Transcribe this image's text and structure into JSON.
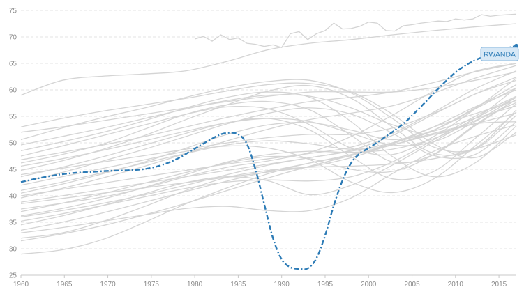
{
  "chart_data": {
    "type": "line",
    "title": "",
    "xlabel": "",
    "ylabel": "",
    "xlim": [
      1960,
      2017
    ],
    "ylim": [
      25,
      75
    ],
    "x_ticks": [
      1960,
      1965,
      1970,
      1975,
      1980,
      1985,
      1990,
      1995,
      2000,
      2005,
      2010,
      2015
    ],
    "y_ticks": [
      25,
      30,
      35,
      40,
      45,
      50,
      55,
      60,
      65,
      70,
      75
    ],
    "grid": true,
    "highlight": {
      "name": "RWANDA",
      "color": "#2c7bb6",
      "x": [
        1960,
        1962,
        1964,
        1966,
        1968,
        1970,
        1972,
        1974,
        1976,
        1978,
        1980,
        1982,
        1983,
        1984,
        1985,
        1986,
        1987,
        1988,
        1989,
        1990,
        1991,
        1992,
        1993,
        1994,
        1995,
        1996,
        1997,
        1998,
        1999,
        2000,
        2002,
        2004,
        2006,
        2008,
        2010,
        2012,
        2014,
        2016,
        2017
      ],
      "values": [
        42.6,
        43.3,
        43.9,
        44.3,
        44.5,
        44.7,
        44.8,
        45.0,
        45.7,
        47.0,
        48.9,
        50.8,
        51.6,
        51.9,
        51.6,
        49.8,
        44.9,
        38.4,
        32.0,
        28.0,
        26.5,
        26.2,
        26.3,
        28.2,
        32.5,
        38.2,
        42.9,
        46.2,
        48.0,
        49.0,
        51.2,
        53.6,
        56.8,
        60.2,
        63.3,
        65.4,
        66.7,
        67.9,
        68.3
      ]
    },
    "background_series": [
      {
        "values": [
          59,
          61.8,
          62.6,
          63,
          63.6,
          65.4,
          67.6,
          68.8,
          69.5,
          70.4,
          71.2,
          71.9,
          72.5
        ]
      },
      {
        "values": [
          29,
          29.8,
          31.8,
          35,
          38.5,
          41.5,
          44.2,
          46.2,
          47.6,
          50,
          53,
          55.5,
          58
        ]
      },
      {
        "values": [
          32,
          33,
          35.2,
          38,
          41,
          43.5,
          44.8,
          45.4,
          45.6,
          46,
          47,
          48.8,
          51.5
        ]
      },
      {
        "values": [
          37.5,
          38.6,
          39.8,
          41.5,
          43.6,
          45.4,
          46.6,
          48.2,
          51.2,
          55.2,
          59.8,
          63.5,
          65
        ]
      },
      {
        "values": [
          38.5,
          39.5,
          40.5,
          41.5,
          42.5,
          43.5,
          44.5,
          45.5,
          47.2,
          49.8,
          53,
          56.8,
          60
        ]
      },
      {
        "values": [
          36.2,
          37.6,
          39.4,
          41.6,
          44,
          46.4,
          47.8,
          48.4,
          48.2,
          48.8,
          50.8,
          54.2,
          57.6
        ]
      },
      {
        "values": [
          34.5,
          36.2,
          38.2,
          40.4,
          42.5,
          43.6,
          42.8,
          40.2,
          42,
          45.8,
          50.2,
          54.6,
          58.6
        ]
      },
      {
        "values": [
          40.5,
          42.2,
          44.2,
          46.4,
          49,
          51.6,
          53.4,
          53.8,
          52.4,
          50.6,
          52.4,
          56.4,
          60.4
        ]
      },
      {
        "values": [
          46.2,
          47.8,
          49.8,
          52.6,
          55.4,
          57.2,
          57.8,
          56.2,
          51.4,
          46.4,
          47.8,
          53.2,
          58.2
        ]
      },
      {
        "values": [
          48.5,
          50.2,
          52,
          54.2,
          56.6,
          58.6,
          59.6,
          58.6,
          54,
          47.4,
          43.6,
          46.2,
          53.2
        ]
      },
      {
        "values": [
          44.8,
          46.6,
          48.8,
          51.4,
          54.4,
          57.2,
          59.8,
          60.8,
          58.4,
          53,
          48,
          48.8,
          55.2
        ]
      },
      {
        "values": [
          50.6,
          52.8,
          54.8,
          56.6,
          58.6,
          60.4,
          61.6,
          61.8,
          59.4,
          54.6,
          49.2,
          49,
          56.2
        ]
      },
      {
        "values": [
          42.5,
          44.4,
          46.6,
          48.8,
          51.2,
          53.6,
          55.6,
          56.6,
          55.4,
          51.8,
          47.6,
          47.8,
          54
        ]
      },
      {
        "values": [
          53,
          54.6,
          56,
          57.2,
          58.4,
          59.8,
          61,
          61.2,
          59.6,
          55.4,
          49.8,
          47.2,
          52
        ]
      },
      {
        "values": [
          31.5,
          32.8,
          34.4,
          36.4,
          38.6,
          41,
          43.4,
          45.6,
          47.6,
          49.6,
          51.8,
          53.6,
          54
        ]
      },
      {
        "values": [
          33.5,
          35,
          36.8,
          38.8,
          40.8,
          42.8,
          44.6,
          46.2,
          47.8,
          49.6,
          51.6,
          53.6,
          55.6
        ]
      },
      {
        "values": [
          36,
          37.2,
          38.6,
          40.2,
          42,
          44,
          45.8,
          47.2,
          48.4,
          50,
          52.2,
          54.6,
          57
        ]
      },
      {
        "values": [
          38.8,
          40,
          41.2,
          42.4,
          43.6,
          44.8,
          46,
          47.2,
          48.6,
          51.4,
          55.4,
          59.2,
          61.8
        ]
      },
      {
        "values": [
          41,
          42.6,
          44.4,
          46.2,
          48,
          49.6,
          50.4,
          49.8,
          48.8,
          49.6,
          52.4,
          56.6,
          61
        ]
      },
      {
        "values": [
          47.5,
          49.4,
          51.4,
          53.4,
          55.4,
          56.8,
          56.4,
          53.4,
          49,
          47.8,
          51.2,
          56.4,
          62.2
        ]
      },
      {
        "values": [
          43.6,
          45.4,
          47.4,
          49.6,
          51.8,
          53.8,
          54.6,
          52.4,
          47.4,
          43.2,
          44.6,
          50.8,
          57.4
        ]
      },
      {
        "values": [
          35.2,
          36.6,
          38.2,
          39.8,
          41.4,
          42.6,
          43,
          42.8,
          43.6,
          46.4,
          50.6,
          55,
          58.8
        ]
      },
      {
        "values": [
          39.6,
          41.4,
          43.4,
          45.6,
          48,
          50.4,
          52.6,
          54.4,
          55.6,
          57,
          59.4,
          62.2,
          64.6
        ]
      },
      {
        "values": [
          46.8,
          48.2,
          49.6,
          51.2,
          53,
          54.8,
          56.4,
          57.8,
          58.6,
          59.6,
          61.4,
          63.4,
          65
        ]
      },
      {
        "values": [
          44,
          45.2,
          46.4,
          47.6,
          48.8,
          50,
          51,
          51.6,
          51.6,
          52.8,
          55.6,
          59.2,
          62.4
        ]
      },
      {
        "values": [
          37,
          38.6,
          40.4,
          42.4,
          44.4,
          46.2,
          47.4,
          47,
          45,
          44.6,
          47.8,
          53.4,
          58.2
        ]
      },
      {
        "values": [
          42,
          43.6,
          45.2,
          46.8,
          48.4,
          49.4,
          49,
          46.8,
          42.6,
          40.6,
          43.2,
          49.4,
          55.8
        ]
      },
      {
        "values": [
          49.6,
          51.2,
          52.8,
          54.6,
          56.4,
          58,
          59,
          58.8,
          56.6,
          53.4,
          51.6,
          54.6,
          60.4
        ]
      },
      {
        "values": [
          40,
          41.2,
          42.4,
          43.6,
          44.8,
          46,
          47,
          48,
          49.2,
          51.8,
          55.8,
          60.2,
          63.6
        ]
      },
      {
        "values": [
          45.6,
          47,
          48.6,
          50.4,
          52.2,
          53.8,
          54.6,
          54,
          51.8,
          49.6,
          50.2,
          54,
          58.6
        ]
      },
      {
        "values": [
          33,
          34,
          35.2,
          36.4,
          37.6,
          38,
          37.2,
          37.2,
          39.6,
          44.2,
          48.4,
          51.2,
          53.4
        ]
      },
      {
        "values": [
          52,
          53,
          54.2,
          55.4,
          56.6,
          57.8,
          58.8,
          59.6,
          59.6,
          59.6,
          60.4,
          61.8,
          63.4
        ]
      }
    ],
    "upper_series": {
      "x": [
        1980,
        1981,
        1982,
        1983,
        1984,
        1985,
        1986,
        1987,
        1988,
        1989,
        1990,
        1991,
        1992,
        1993,
        1994,
        1995,
        1996,
        1997,
        1998,
        1999,
        2000,
        2001,
        2002,
        2003,
        2004,
        2005,
        2006,
        2007,
        2008,
        2009,
        2010,
        2011,
        2012,
        2013,
        2014,
        2015,
        2016,
        2017
      ],
      "values": [
        69.6,
        70.1,
        69.2,
        70.4,
        69.5,
        69.8,
        68.8,
        68.6,
        68.2,
        68.5,
        68,
        70.6,
        71,
        69.5,
        70.6,
        71.2,
        72.6,
        71.5,
        71.6,
        72,
        72.8,
        72.6,
        71.2,
        71.1,
        72.1,
        72.3,
        72.6,
        72.8,
        73,
        72.9,
        73.4,
        73.2,
        73.4,
        74.2,
        73.9,
        74.1,
        74.2,
        74.3
      ]
    }
  }
}
